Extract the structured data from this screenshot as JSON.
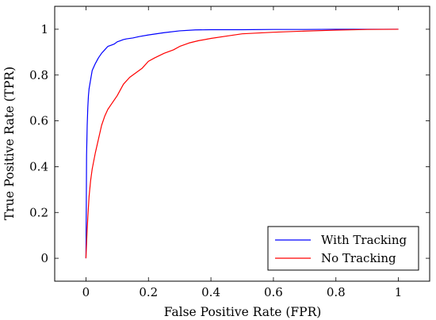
{
  "chart_data": {
    "type": "line",
    "title": "",
    "xlabel": "False Positive Rate (FPR)",
    "ylabel": "True Positive Rate (TPR)",
    "xlim": [
      -0.1,
      1.1
    ],
    "ylim": [
      -0.1,
      1.1
    ],
    "xticks": [
      0,
      0.2,
      0.4,
      0.6,
      0.8,
      1
    ],
    "xtick_labels": [
      "0",
      "0.2",
      "0.4",
      "0.6",
      "0.8",
      "1"
    ],
    "yticks": [
      0,
      0.2,
      0.4,
      0.6,
      0.8,
      1
    ],
    "ytick_labels": [
      "0",
      "0.2",
      "0.4",
      "0.6",
      "0.8",
      "1"
    ],
    "grid": false,
    "legend_position": "bottom-right",
    "series": [
      {
        "name": "With Tracking",
        "color": "#0000ff",
        "x": [
          0,
          0.001,
          0.002,
          0.004,
          0.006,
          0.008,
          0.01,
          0.015,
          0.02,
          0.025,
          0.03,
          0.04,
          0.05,
          0.06,
          0.07,
          0.08,
          0.09,
          0.1,
          0.11,
          0.12,
          0.13,
          0.15,
          0.17,
          0.2,
          0.25,
          0.3,
          0.35,
          0.4,
          0.5,
          0.6,
          0.7,
          0.8,
          0.9,
          1.0
        ],
        "y": [
          0,
          0.2,
          0.45,
          0.58,
          0.66,
          0.71,
          0.74,
          0.78,
          0.82,
          0.835,
          0.85,
          0.875,
          0.895,
          0.91,
          0.925,
          0.93,
          0.935,
          0.945,
          0.95,
          0.955,
          0.958,
          0.962,
          0.968,
          0.975,
          0.985,
          0.993,
          0.997,
          0.998,
          0.998,
          0.999,
          0.999,
          1.0,
          1.0,
          1.0
        ]
      },
      {
        "name": "No Tracking",
        "color": "#ff0000",
        "x": [
          0,
          0.003,
          0.006,
          0.01,
          0.015,
          0.02,
          0.03,
          0.04,
          0.05,
          0.06,
          0.07,
          0.08,
          0.1,
          0.12,
          0.14,
          0.16,
          0.18,
          0.2,
          0.22,
          0.25,
          0.28,
          0.3,
          0.33,
          0.36,
          0.4,
          0.45,
          0.5,
          0.6,
          0.7,
          0.8,
          0.9,
          1.0
        ],
        "y": [
          0,
          0.1,
          0.18,
          0.27,
          0.34,
          0.39,
          0.46,
          0.52,
          0.58,
          0.62,
          0.65,
          0.67,
          0.71,
          0.76,
          0.79,
          0.81,
          0.83,
          0.86,
          0.875,
          0.895,
          0.91,
          0.925,
          0.94,
          0.95,
          0.96,
          0.97,
          0.98,
          0.987,
          0.992,
          0.996,
          0.999,
          1.0
        ]
      }
    ]
  }
}
